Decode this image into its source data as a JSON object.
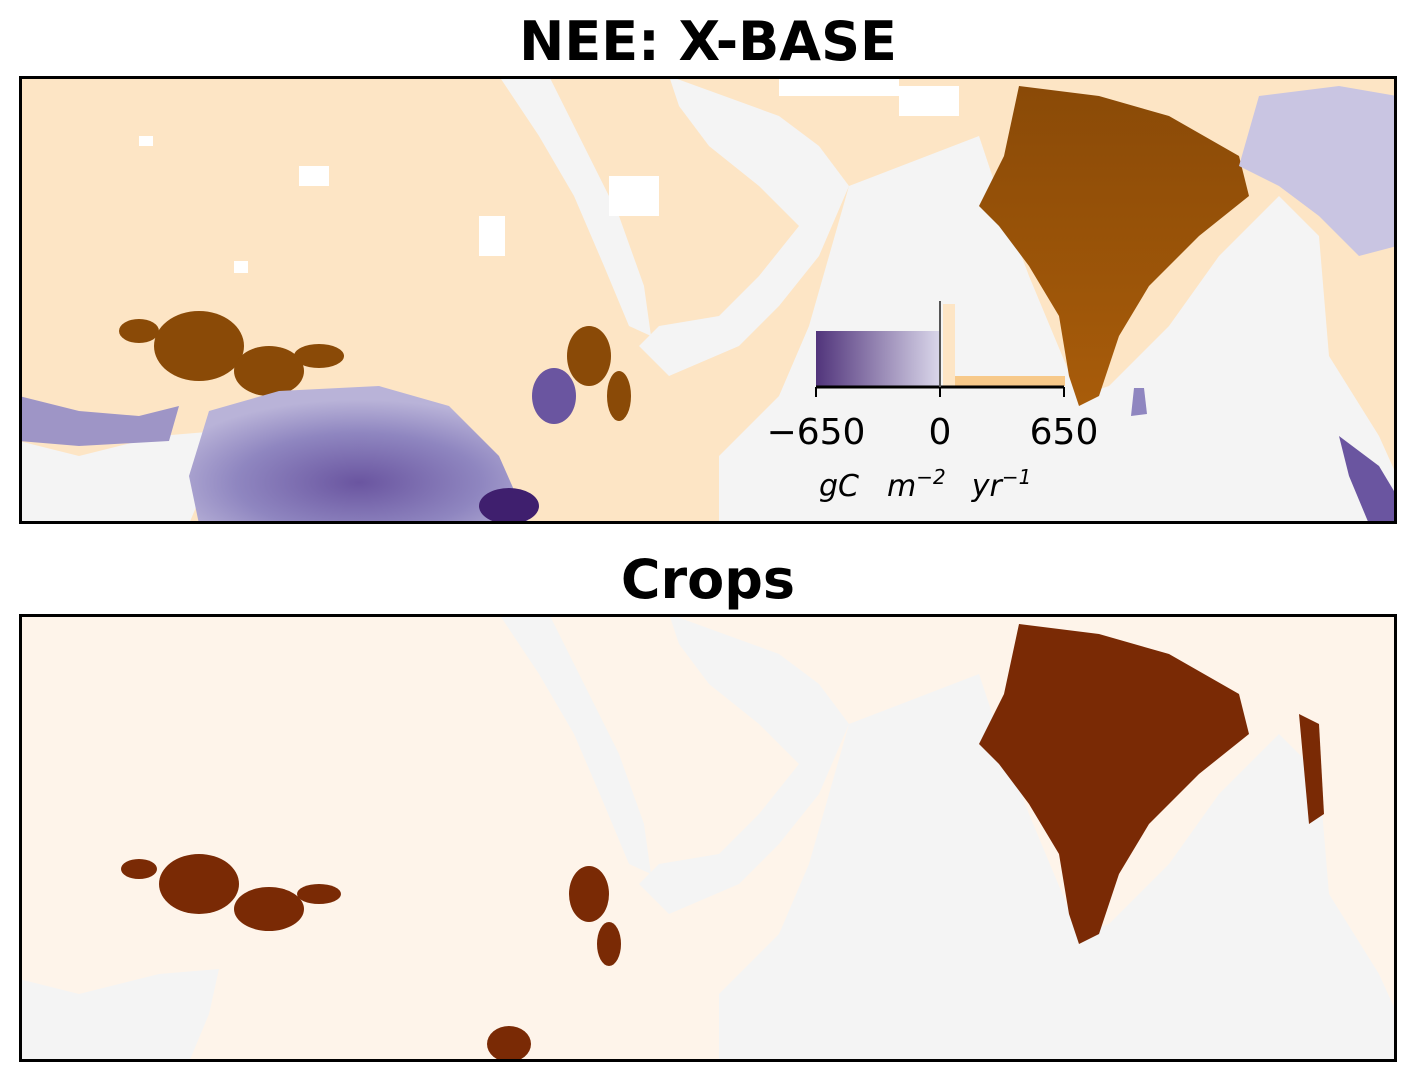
{
  "panels": {
    "top": {
      "title": "NEE: X-BASE"
    },
    "bottom": {
      "title": "Crops"
    }
  },
  "colorbar": {
    "ticks": [
      "−650",
      "0",
      "650"
    ],
    "tick_values": [
      -650,
      0,
      650
    ],
    "units": {
      "base1": "gC",
      "base2": "m",
      "exp2": "−2",
      "base3": "yr",
      "exp3": "−1"
    },
    "colormap": "PuOr"
  },
  "colors": {
    "ocean": "#f4f4f4",
    "land_top": "#fde5c5",
    "crop_high": "#8a4a07",
    "sink_high": "#3f1f6e",
    "crops_background": "#fef4ea",
    "crops_mask": "#7a2a05"
  }
}
